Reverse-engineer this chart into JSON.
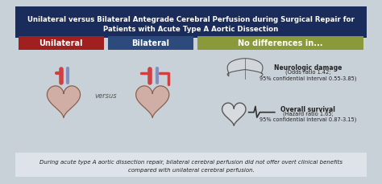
{
  "title_line1": "Unilateral versus Bilateral Antegrade Cerebral Perfusion during Surgical Repair for",
  "title_line2": "Patients with Acute Type A Aortic Dissection",
  "title_bg": "#1a2c5b",
  "title_color": "#ffffff",
  "label1": "Unilateral",
  "label1_bg": "#a02020",
  "label1_color": "#ffffff",
  "label2": "Bilateral",
  "label2_bg": "#2c4a7c",
  "label2_color": "#ffffff",
  "label3": "No differences in...",
  "label3_bg": "#8a9a3a",
  "label3_color": "#ffffff",
  "body_bg": "#c8d0d8",
  "versus_text": "versus",
  "result1_title": "Neurologic damage",
  "result1_sub": "(Odds ratio 1.42;\n95% confidential interval 0.55-3.85)",
  "result2_title": "Overall survival",
  "result2_sub": "(Hazard ratio 1.65;\n95% confidential interval 0.87-3.15)",
  "footer_line1": "During acute type A aortic dissection repair, bilateral cerebral perfusion did not offer overt clinical benefits",
  "footer_line2": "compared with unilateral cerebral perfusion.",
  "footer_bg": "#dde3e8",
  "footer_color": "#222222",
  "result_color": "#222222"
}
